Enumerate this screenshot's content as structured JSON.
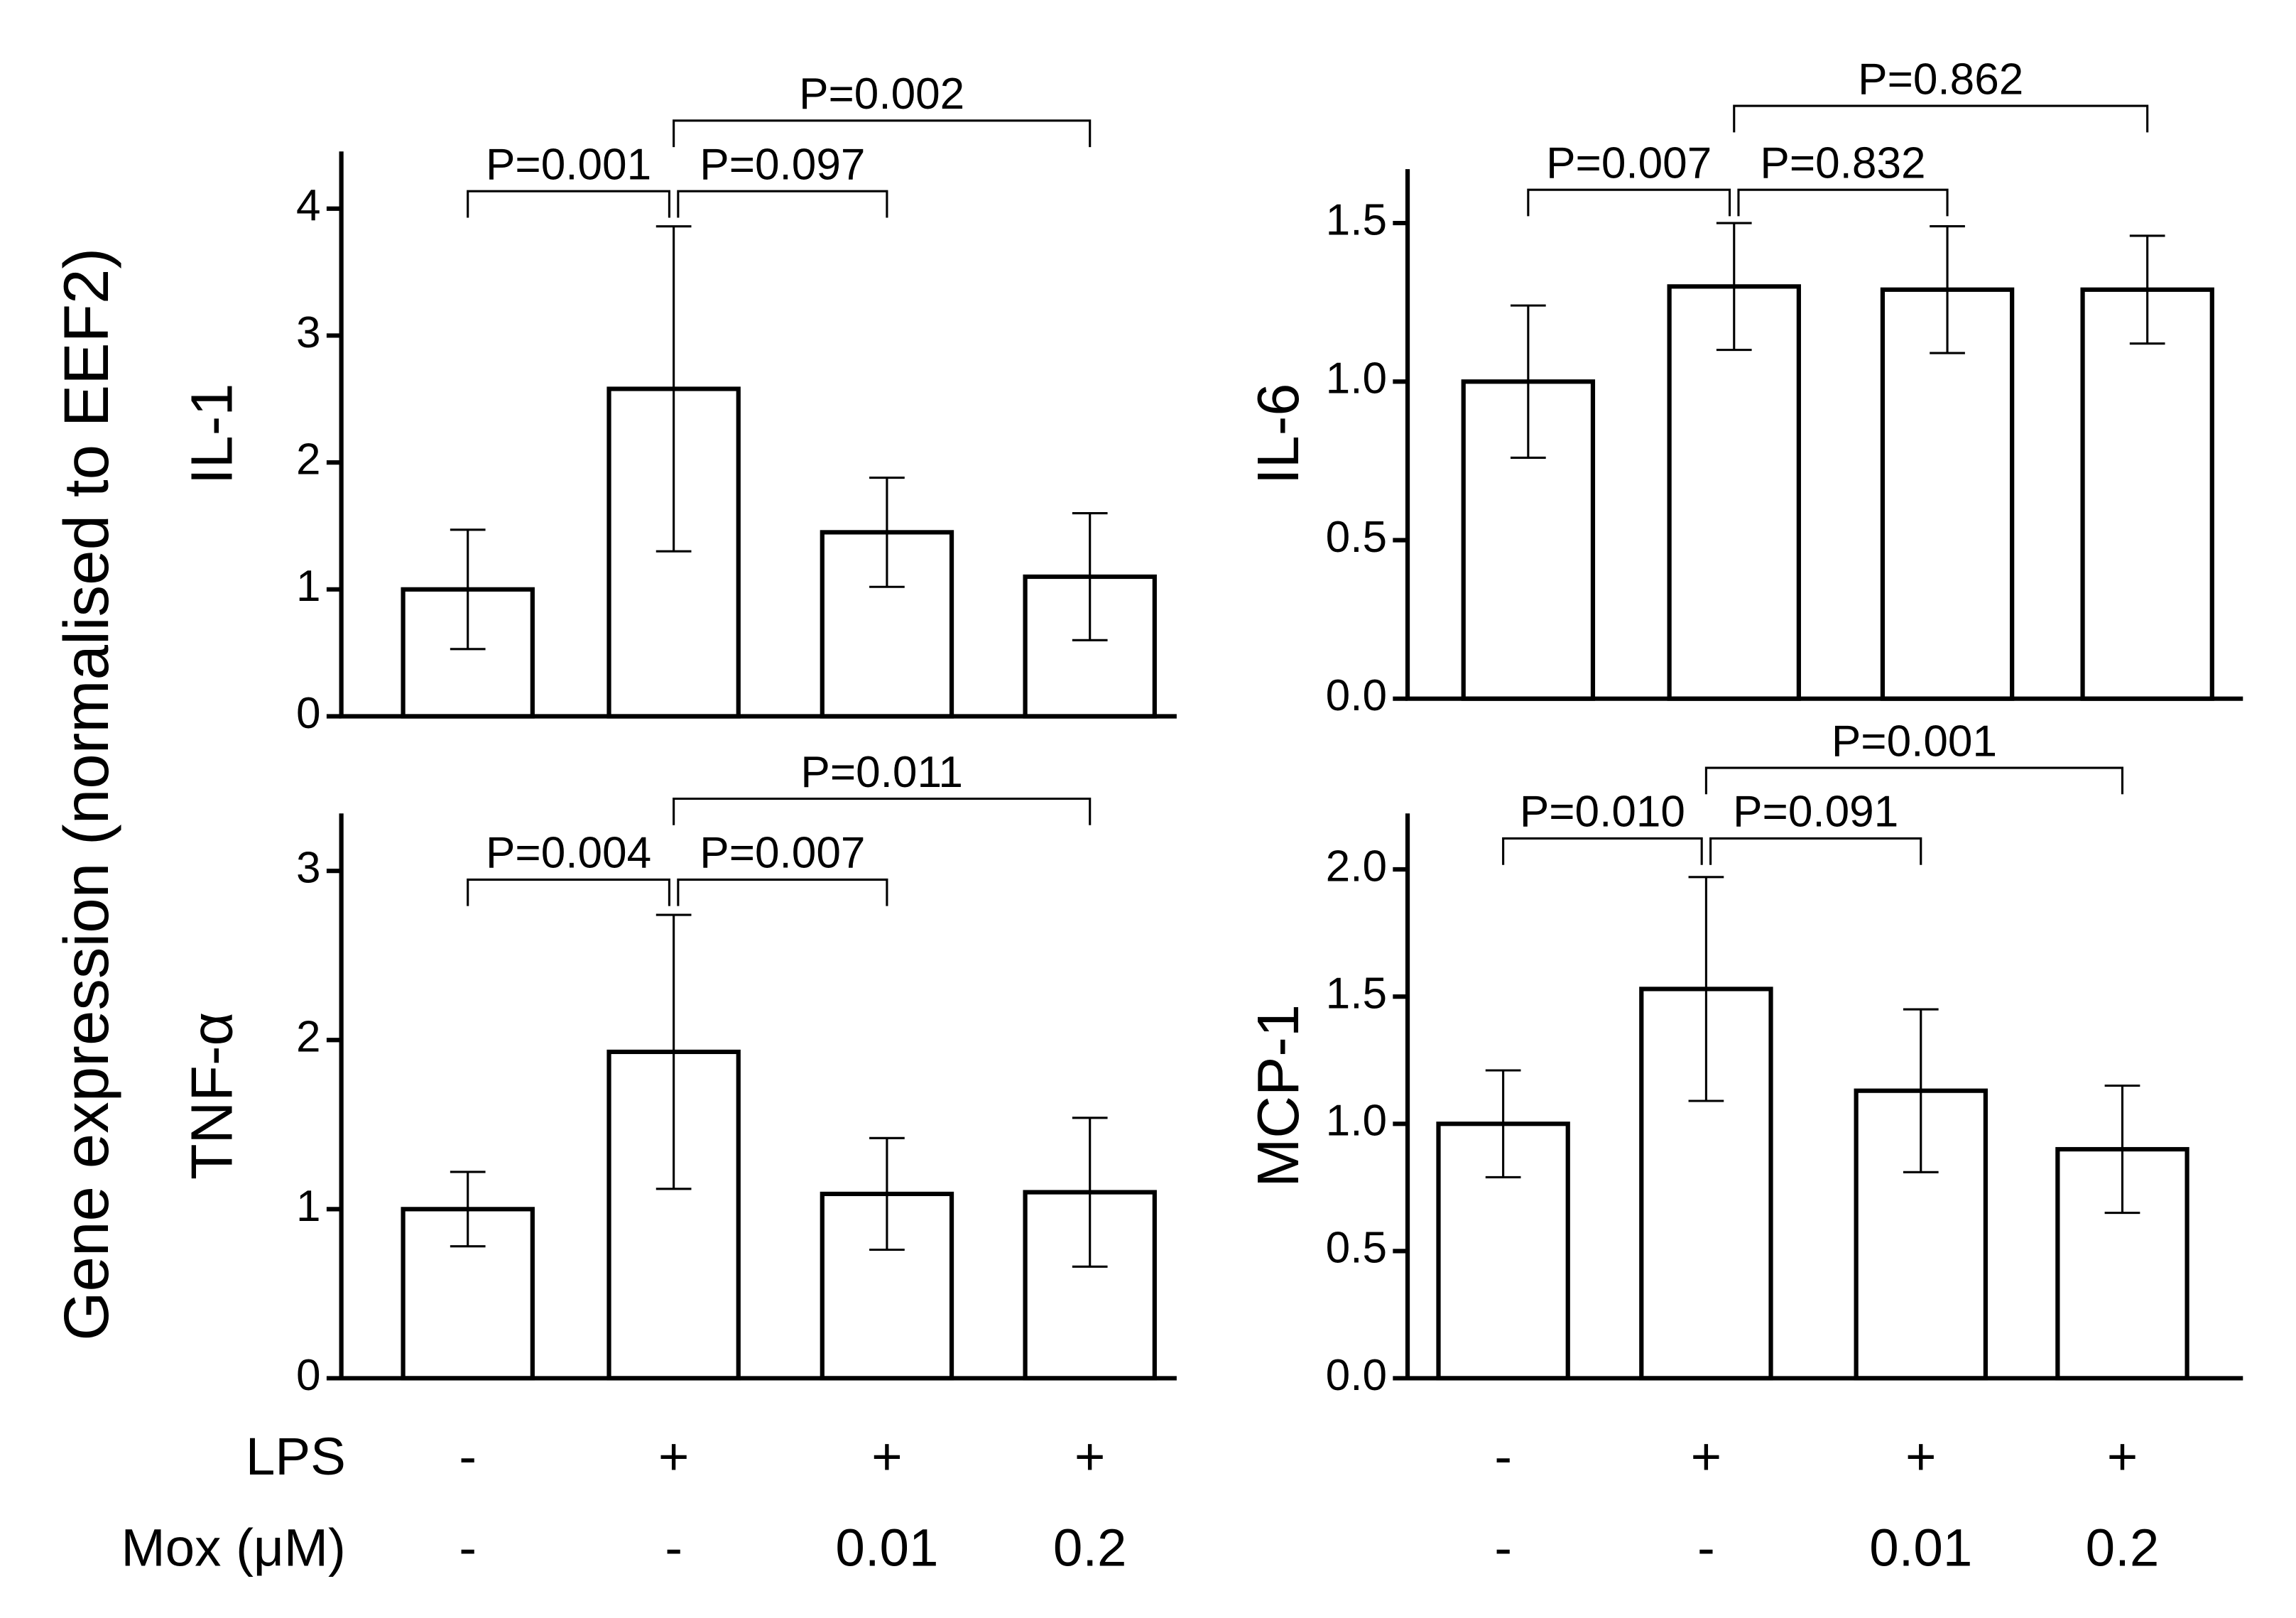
{
  "y_label": "Gene expression (normalised to EEF2)",
  "treatment_rows": [
    {
      "label": "LPS",
      "values": [
        "-",
        "+",
        "+",
        "+"
      ]
    },
    {
      "label": "Mox (μM)",
      "values": [
        "-",
        "-",
        "0.01",
        "0.2"
      ]
    }
  ],
  "chart_data": [
    {
      "type": "bar",
      "ylabel": "IL-1",
      "color": "#ffffff",
      "values": [
        1.0,
        2.58,
        1.45,
        1.1
      ],
      "errors": [
        0.47,
        1.28,
        0.43,
        0.5
      ],
      "ylim": [
        0,
        4.45
      ],
      "yticks": [
        0,
        1,
        2,
        3,
        4
      ],
      "p_values": [
        "P=0.001",
        "P=0.097",
        "P=0.002"
      ]
    },
    {
      "type": "bar",
      "ylabel": "IL-6",
      "color": "#ffffff",
      "values": [
        1.0,
        1.3,
        1.29,
        1.29
      ],
      "errors": [
        0.24,
        0.2,
        0.2,
        0.17
      ],
      "ylim": [
        0,
        1.67
      ],
      "yticks": [
        {
          "value": 0,
          "label": "0.0"
        },
        0.5,
        {
          "value": 1,
          "label": "1.0"
        },
        1.5
      ],
      "p_values": [
        "P=0.007",
        "P=0.832",
        "P=0.862"
      ]
    },
    {
      "type": "bar",
      "ylabel": "TNF-α",
      "color": "#ffffff",
      "values": [
        1.0,
        1.93,
        1.09,
        1.1
      ],
      "errors": [
        0.22,
        0.81,
        0.33,
        0.44
      ],
      "ylim": [
        0,
        3.34
      ],
      "yticks": [
        0,
        1,
        2,
        3
      ],
      "p_values": [
        "P=0.004",
        "P=0.007",
        "P=0.011"
      ]
    },
    {
      "type": "bar",
      "ylabel": "MCP-1",
      "color": "#ffffff",
      "values": [
        1.0,
        1.53,
        1.13,
        0.9
      ],
      "errors": [
        0.21,
        0.44,
        0.32,
        0.25
      ],
      "ylim": [
        0,
        2.22
      ],
      "yticks": [
        {
          "value": 0,
          "label": "0.0"
        },
        0.5,
        {
          "value": 1,
          "label": "1.0"
        },
        1.5,
        {
          "value": 2,
          "label": "2.0"
        }
      ],
      "p_values": [
        "P=0.010",
        "P=0.091",
        "P=0.001"
      ]
    }
  ]
}
